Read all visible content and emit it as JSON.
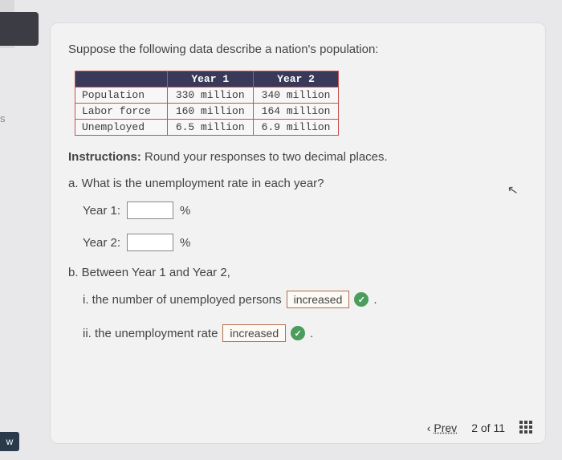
{
  "intro": "Suppose the following data describe a nation's population:",
  "table": {
    "headers": [
      "",
      "Year 1",
      "Year 2"
    ],
    "rows": [
      [
        "Population",
        "330 million",
        "340 million"
      ],
      [
        "Labor force",
        "160 million",
        "164 million"
      ],
      [
        "Unemployed",
        "6.5 million",
        "6.9 million"
      ]
    ],
    "header_bg": "#39395a",
    "border_color": "#c94f4f"
  },
  "instructions_label": "Instructions:",
  "instructions_text": " Round your responses to two decimal places.",
  "qa": "a. What is the unemployment rate in each year?",
  "year1_label": "Year 1:",
  "year2_label": "Year 2:",
  "pct": "%",
  "qb": "b. Between Year 1 and Year 2,",
  "bi_pre": "i. the number of unemployed persons",
  "bi_sel": "increased",
  "bii_pre": "ii. the unemployment rate",
  "bii_sel": "increased",
  "period": ".",
  "prev": "Prev",
  "page_current": "2",
  "page_of": "of",
  "page_total": "11",
  "left_s": "s",
  "left_w": "w"
}
